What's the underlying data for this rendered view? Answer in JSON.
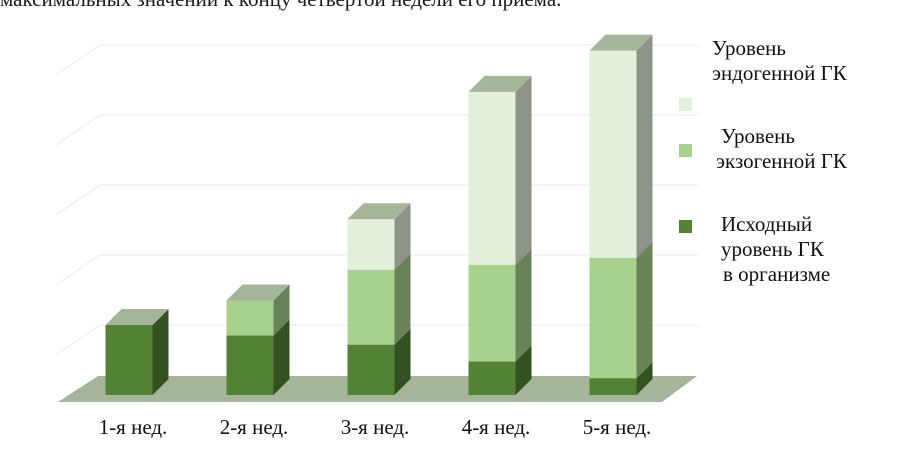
{
  "caption": "максимальных значений к концу четвертой недели его приема.",
  "chart_data": {
    "type": "bar",
    "stacked": true,
    "three_d": true,
    "categories": [
      "1-я нед.",
      "2-я нед.",
      "3-я нед.",
      "4-я нед.",
      "5-я нед."
    ],
    "series": [
      {
        "name": "Исходный уровень ГК в организме",
        "name_lines": [
          "Исходный",
          "уровень ГК",
          "в организме"
        ],
        "color": "#548235",
        "values": [
          1.0,
          0.85,
          0.72,
          0.48,
          0.24
        ]
      },
      {
        "name": "Уровень экзогенной ГК",
        "name_lines": [
          "Уровень",
          "экзогенной ГК"
        ],
        "color": "#a9d18e",
        "values": [
          0,
          0.5,
          1.07,
          1.38,
          1.72
        ]
      },
      {
        "name": "Уровень эндогенной ГК",
        "name_lines": [
          "Уровень",
          "эндогенной ГК"
        ],
        "color": "#e2efda",
        "values": [
          0,
          0,
          0.72,
          2.47,
          2.96
        ]
      }
    ],
    "ylim": [
      0,
      5
    ],
    "gridlines": true,
    "y_axis_labels": false,
    "legend_position": "right",
    "title": "",
    "xlabel": "",
    "ylabel": ""
  }
}
